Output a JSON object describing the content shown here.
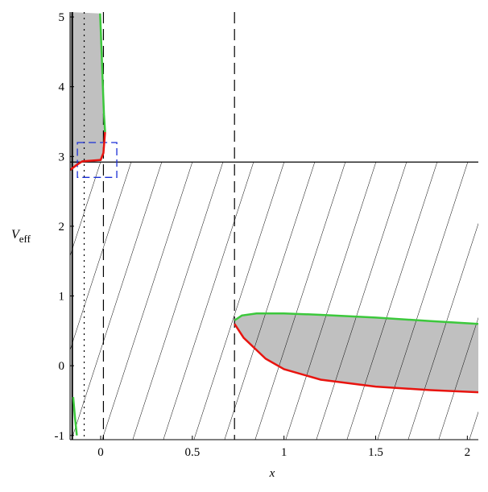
{
  "chart_data": {
    "type": "line",
    "xlabel": "x",
    "ylabel": {
      "main": "V",
      "sub": "eff"
    },
    "xlim": [
      -0.167,
      2.06
    ],
    "ylim": [
      -1.06,
      5.07
    ],
    "xticks": [
      0,
      0.5,
      1,
      1.5,
      2
    ],
    "yticks": [
      -1,
      0,
      1,
      2,
      3,
      4,
      5
    ],
    "series": [
      {
        "color": "#3cc83c",
        "x": [
          -0.003,
          0.005,
          0.012,
          0.018,
          0.024
        ],
        "values": [
          5.05,
          4.5,
          4.0,
          3.6,
          3.35
        ]
      },
      {
        "color": "#e8140f",
        "x": [
          -0.17,
          -0.13,
          -0.1,
          -0.05,
          0,
          0.015,
          0.024
        ],
        "values": [
          2.8,
          2.88,
          2.93,
          2.94,
          2.95,
          3.05,
          3.35
        ]
      },
      {
        "color": "#3cc83c",
        "x": [
          -0.15,
          -0.14,
          -0.13
        ],
        "values": [
          -0.45,
          -0.75,
          -1.0
        ]
      },
      {
        "color": "#3cc83c",
        "x": [
          0.73,
          0.77,
          0.85,
          1.0,
          1.2,
          1.5,
          1.8,
          2.06
        ],
        "values": [
          0.65,
          0.72,
          0.75,
          0.75,
          0.73,
          0.69,
          0.64,
          0.6
        ]
      },
      {
        "color": "#e8140f",
        "x": [
          0.73,
          0.78,
          0.9,
          1.0,
          1.2,
          1.5,
          1.8,
          2.06
        ],
        "values": [
          0.6,
          0.4,
          0.1,
          -0.05,
          -0.2,
          -0.3,
          -0.35,
          -0.38
        ]
      }
    ],
    "shaded": [
      [
        0,
        1
      ],
      [
        3,
        4
      ]
    ],
    "vlines": [
      {
        "x": -0.155,
        "style": "solid"
      },
      {
        "x": -0.09,
        "style": "dotted"
      },
      {
        "x": 0.015,
        "style": "dashed"
      },
      {
        "x": 0.73,
        "style": "dashed"
      }
    ],
    "hlines": [
      {
        "y": 2.92
      }
    ],
    "hatch": true,
    "rects": [
      {
        "x": [
          -0.127,
          0.088
        ],
        "y": [
          2.7,
          3.2
        ],
        "color": "#1a2fd6"
      }
    ]
  }
}
